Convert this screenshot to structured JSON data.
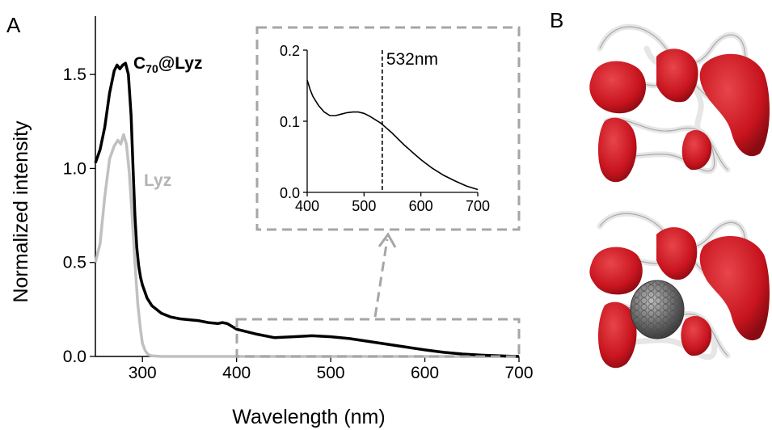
{
  "panel_letters": {
    "a": "A",
    "b": "B"
  },
  "chart_data": [
    {
      "type": "line",
      "panel": "A",
      "xlabel": "Wavelength (nm)",
      "ylabel": "Normalized intensity",
      "xlim": [
        250,
        700
      ],
      "ylim": [
        0,
        1.75
      ],
      "x_ticks": [
        "300",
        "400",
        "500",
        "600",
        "700"
      ],
      "y_ticks": [
        "0.0",
        "0.5",
        "1.0",
        "1.5"
      ],
      "series": [
        {
          "name": "C70@Lyz",
          "label_main": "C",
          "label_sub": "70",
          "label_rest": "@Lyz",
          "color": "#000000",
          "x": [
            250,
            255,
            260,
            265,
            270,
            273,
            276,
            279,
            282,
            285,
            288,
            290,
            292,
            294,
            296,
            298,
            300,
            305,
            310,
            320,
            330,
            340,
            350,
            360,
            370,
            380,
            385,
            390,
            395,
            400,
            420,
            440,
            460,
            480,
            500,
            520,
            540,
            560,
            580,
            600,
            620,
            640,
            660,
            680,
            700
          ],
          "y": [
            1.03,
            1.1,
            1.22,
            1.4,
            1.52,
            1.55,
            1.53,
            1.55,
            1.56,
            1.5,
            1.28,
            1.0,
            0.75,
            0.58,
            0.48,
            0.42,
            0.38,
            0.31,
            0.27,
            0.23,
            0.21,
            0.2,
            0.195,
            0.19,
            0.18,
            0.175,
            0.18,
            0.175,
            0.16,
            0.145,
            0.12,
            0.1,
            0.105,
            0.11,
            0.105,
            0.095,
            0.08,
            0.065,
            0.05,
            0.035,
            0.022,
            0.013,
            0.007,
            0.003,
            0.0
          ]
        },
        {
          "name": "Lyz",
          "label_main": "Lyz",
          "color": "#c0c0c0",
          "x": [
            250,
            255,
            260,
            265,
            270,
            274,
            277,
            280,
            283,
            286,
            289,
            292,
            295,
            298,
            300,
            303,
            306,
            310,
            320,
            350,
            400,
            500,
            600,
            700
          ],
          "y": [
            0.5,
            0.6,
            0.85,
            1.05,
            1.12,
            1.15,
            1.13,
            1.18,
            1.13,
            0.98,
            0.75,
            0.5,
            0.28,
            0.14,
            0.07,
            0.03,
            0.01,
            0.003,
            0.0,
            0.0,
            0.0,
            0.0,
            0.0,
            0.0
          ]
        }
      ]
    },
    {
      "type": "line",
      "panel": "A-inset",
      "xlim": [
        400,
        700
      ],
      "ylim": [
        0,
        0.2
      ],
      "x_ticks": [
        "400",
        "500",
        "600",
        "700"
      ],
      "y_ticks": [
        "0.0",
        "0.1",
        "0.2"
      ],
      "marker_x": 532,
      "marker_label": "532nm",
      "series": [
        {
          "color": "#000000",
          "x": [
            400,
            405,
            410,
            420,
            430,
            440,
            450,
            460,
            470,
            480,
            490,
            500,
            510,
            520,
            530,
            540,
            550,
            560,
            570,
            580,
            590,
            600,
            620,
            640,
            660,
            680,
            700
          ],
          "y": [
            0.158,
            0.145,
            0.135,
            0.122,
            0.113,
            0.108,
            0.108,
            0.11,
            0.112,
            0.113,
            0.113,
            0.111,
            0.107,
            0.102,
            0.097,
            0.09,
            0.083,
            0.075,
            0.067,
            0.06,
            0.053,
            0.046,
            0.034,
            0.024,
            0.016,
            0.009,
            0.004
          ]
        }
      ]
    }
  ],
  "colors": {
    "dashed_box": "#a6a6a6",
    "protein_ribbon": "#e6e6e6",
    "protein_surface": "#c8141e",
    "fullerene": "#6e6e6e"
  },
  "structure_images": [
    {
      "name": "lysozyme",
      "icon": "protein-ribbon-surface"
    },
    {
      "name": "c70-lysozyme-complex",
      "icon": "protein-ribbon-surface-with-fullerene"
    }
  ]
}
